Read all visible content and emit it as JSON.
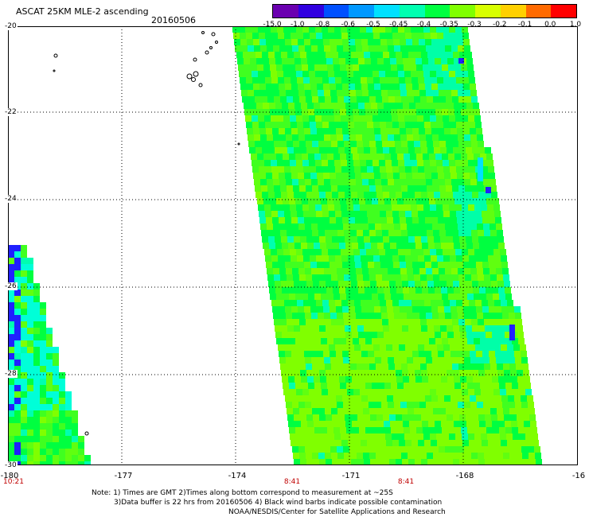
{
  "header": {
    "title": "ASCAT 25KM MLE-2 ascending",
    "date": "20160506"
  },
  "colorbar": {
    "labels": [
      "-15.0",
      "-1.0",
      "-0.8",
      "-0.6",
      "-0.5",
      "-0.45",
      "-0.4",
      "-0.35",
      "-0.3",
      "-0.2",
      "-0.1",
      "0.0",
      "1.0"
    ],
    "colors": [
      "#000000",
      "#6a00b0",
      "#3000e0",
      "#0050ff",
      "#0098ff",
      "#00e0ff",
      "#00ffb0",
      "#00ff40",
      "#80ff00",
      "#d8ff00",
      "#ffd000",
      "#ff6a00",
      "#ff0000"
    ]
  },
  "map": {
    "x_axis_labels": [
      "-180",
      "-177",
      "-174",
      "-171",
      "-168",
      "-16"
    ],
    "y_axis_labels": [
      "-20",
      "-22",
      "-24",
      "-26",
      "-28",
      "-30"
    ],
    "pass_times": [
      "10:21",
      "8:41",
      "8:41"
    ]
  },
  "footer": {
    "note_line1": "Note: 1) Times are GMT 2)Times along bottom correspond to measurement at ~25S",
    "note_line2": "3)Data buffer is 22 hrs from 20160506 4) Black wind barbs indicate possible contamination",
    "note_line3": "NOAA/NESDIS/Center for Satellite Applications and Research"
  }
}
